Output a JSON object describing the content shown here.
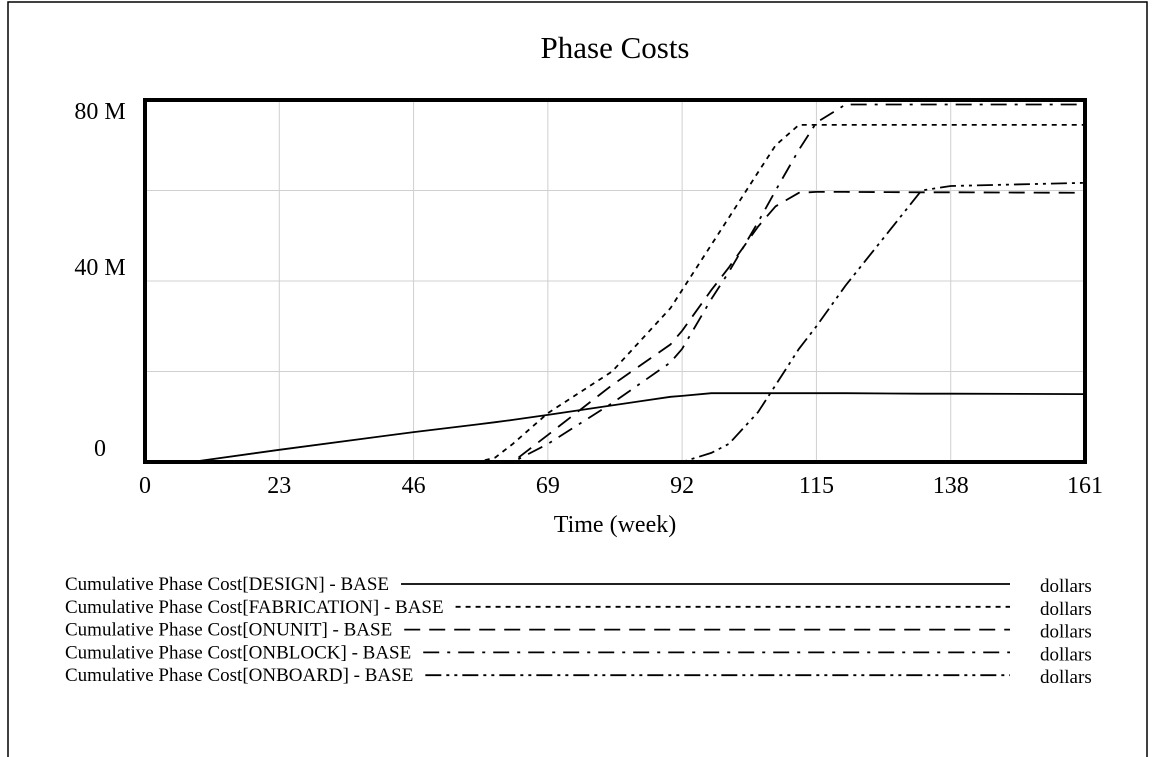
{
  "chart_data": {
    "type": "line",
    "title": "Phase Costs",
    "xlabel": "Time (week)",
    "x": [
      0,
      8,
      23,
      46,
      57,
      60,
      63,
      69,
      80,
      90,
      92,
      97,
      100,
      105,
      108,
      112,
      115,
      120,
      133,
      138,
      161
    ],
    "series": [
      {
        "name": "Cumulative Phase Cost[DESIGN] - BASE",
        "unit": "dollars",
        "color": "#000000",
        "dash": "none",
        "values": [
          0,
          0,
          2700000,
          6600000,
          8300000,
          8800000,
          9300000,
          10400000,
          12500000,
          14400000,
          14600000,
          15200000,
          15200000,
          15200000,
          15200000,
          15200000,
          15200000,
          15200000,
          15100000,
          15100000,
          15000000
        ]
      },
      {
        "name": "Cumulative Phase Cost[FABRICATION] - BASE",
        "unit": "dollars",
        "color": "#000000",
        "dash": "5,5",
        "values": [
          0,
          0,
          0,
          0,
          0,
          1000000,
          4000000,
          10800000,
          20000000,
          34000000,
          38000000,
          48000000,
          54000000,
          64000000,
          70000000,
          74500000,
          74500000,
          74500000,
          74500000,
          74500000,
          74500000
        ]
      },
      {
        "name": "Cumulative Phase Cost[ONUNIT] - BASE",
        "unit": "dollars",
        "color": "#000000",
        "dash": "16,9",
        "values": [
          0,
          0,
          0,
          0,
          0,
          0,
          0,
          6000000,
          17000000,
          26000000,
          29000000,
          38000000,
          43000000,
          52000000,
          56500000,
          59500000,
          59700000,
          59700000,
          59600000,
          59600000,
          59500000
        ]
      },
      {
        "name": "Cumulative Phase Cost[ONBLOCK] - BASE",
        "unit": "dollars",
        "color": "#000000",
        "dash": "16,8,3,8",
        "values": [
          0,
          0,
          0,
          0,
          0,
          0,
          0,
          4000000,
          13000000,
          22000000,
          25000000,
          36000000,
          42000000,
          53000000,
          60000000,
          69000000,
          75000000,
          79000000,
          79000000,
          79000000,
          79000000
        ]
      },
      {
        "name": "Cumulative Phase Cost[ONBOARD] - BASE",
        "unit": "dollars",
        "color": "#000000",
        "dash": "16,5,3,5,3,5",
        "values": [
          0,
          0,
          0,
          0,
          0,
          0,
          0,
          0,
          0,
          0,
          0,
          2000000,
          4000000,
          11000000,
          17000000,
          25000000,
          30000000,
          39000000,
          60000000,
          61000000,
          61700000
        ]
      }
    ],
    "xlim": [
      0,
      161
    ],
    "xticks": [
      0,
      23,
      46,
      69,
      92,
      115,
      138,
      161
    ],
    "ylim": [
      0,
      80000000
    ],
    "yticks": [
      0,
      {
        "value": 40000000,
        "label": "40 M"
      },
      {
        "value": 80000000,
        "label": "80 M"
      }
    ],
    "minor_yticks": [
      20000000,
      60000000
    ],
    "grid": true
  }
}
